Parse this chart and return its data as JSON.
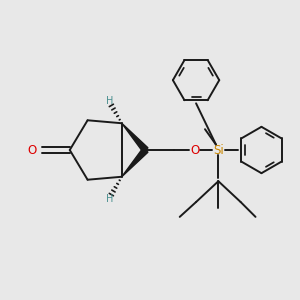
{
  "bg_color": "#e8e8e8",
  "bond_color": "#1a1a1a",
  "oxygen_color": "#dd0000",
  "silicon_color": "#cc8800",
  "hydrogen_color": "#4a9090",
  "lw": 1.4,
  "figsize": [
    3.0,
    3.0
  ],
  "dpi": 100,
  "xlim": [
    0,
    10
  ],
  "ylim": [
    0,
    10
  ]
}
